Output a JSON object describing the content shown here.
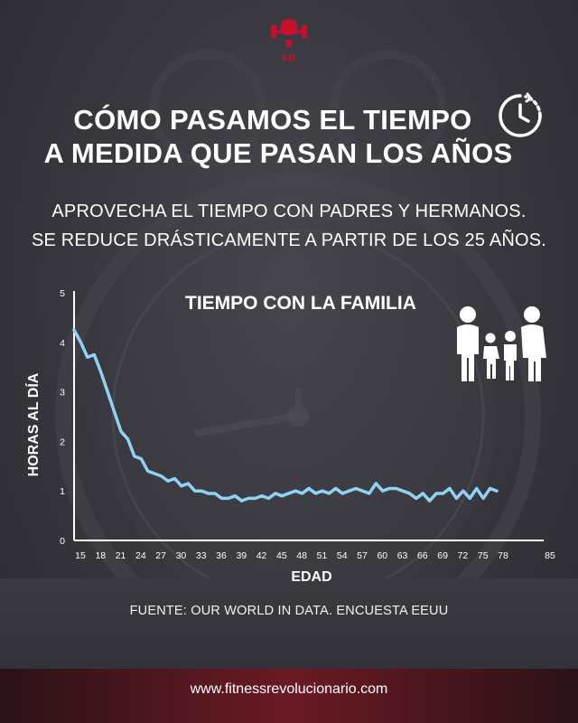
{
  "header": {
    "title_line1": "CÓMO PASAMOS EL TIEMPO",
    "title_line2": "A MEDIDA QUE PASAN LOS AÑOS",
    "subtitle_line1": "APROVECHA EL TIEMPO CON PADRES Y HERMANOS.",
    "subtitle_line2": "SE REDUCE DRÁSTICAMENTE A PARTIR DE LOS 25 AÑOS."
  },
  "icons": {
    "logo": "fist-dumbbell-logo-icon",
    "clock": "clock-icon",
    "family": "family-icon"
  },
  "colors": {
    "line": "#8fd3f4",
    "accent": "#c8102e",
    "background": "#34333a"
  },
  "chart_data": {
    "type": "line",
    "title": "TIEMPO CON LA FAMILIA",
    "xlabel": "EDAD",
    "ylabel": "HORAS AL DÍA",
    "xlim": [
      15,
      85
    ],
    "ylim": [
      0,
      5
    ],
    "x_ticks": [
      15,
      18,
      21,
      24,
      27,
      30,
      33,
      36,
      39,
      42,
      45,
      48,
      51,
      54,
      57,
      60,
      63,
      66,
      69,
      72,
      75,
      78,
      85
    ],
    "y_ticks": [
      0,
      1,
      2,
      3,
      4,
      5
    ],
    "grid": false,
    "x": [
      15,
      16,
      17,
      18,
      19,
      20,
      21,
      22,
      23,
      24,
      25,
      26,
      27,
      28,
      29,
      30,
      31,
      32,
      33,
      34,
      35,
      36,
      37,
      38,
      39,
      40,
      41,
      42,
      43,
      44,
      45,
      46,
      47,
      48,
      49,
      50,
      51,
      52,
      53,
      54,
      55,
      56,
      57,
      58,
      59,
      60,
      61,
      62,
      63,
      64,
      65,
      66,
      67,
      68,
      69,
      70,
      71,
      72,
      73,
      74,
      75,
      76,
      77,
      78
    ],
    "values": [
      4.25,
      4.0,
      3.7,
      3.75,
      3.4,
      3.0,
      2.6,
      2.2,
      2.05,
      1.7,
      1.65,
      1.4,
      1.35,
      1.3,
      1.2,
      1.25,
      1.1,
      1.15,
      1.0,
      1.0,
      0.95,
      0.95,
      0.85,
      0.85,
      0.9,
      0.8,
      0.85,
      0.85,
      0.9,
      0.85,
      0.95,
      0.9,
      0.95,
      1.0,
      0.95,
      1.05,
      0.95,
      1.0,
      0.95,
      1.05,
      0.95,
      1.0,
      1.05,
      1.0,
      0.95,
      1.15,
      1.0,
      1.05,
      1.05,
      1.0,
      0.95,
      0.85,
      0.95,
      0.8,
      0.95,
      0.95,
      1.05,
      0.85,
      1.0,
      0.85,
      1.05,
      0.85,
      1.05,
      1.0
    ]
  },
  "footer": {
    "source": "FUENTE: OUR WORLD IN DATA. ENCUESTA EEUU",
    "website": "www.fitnessrevolucionario.com"
  }
}
